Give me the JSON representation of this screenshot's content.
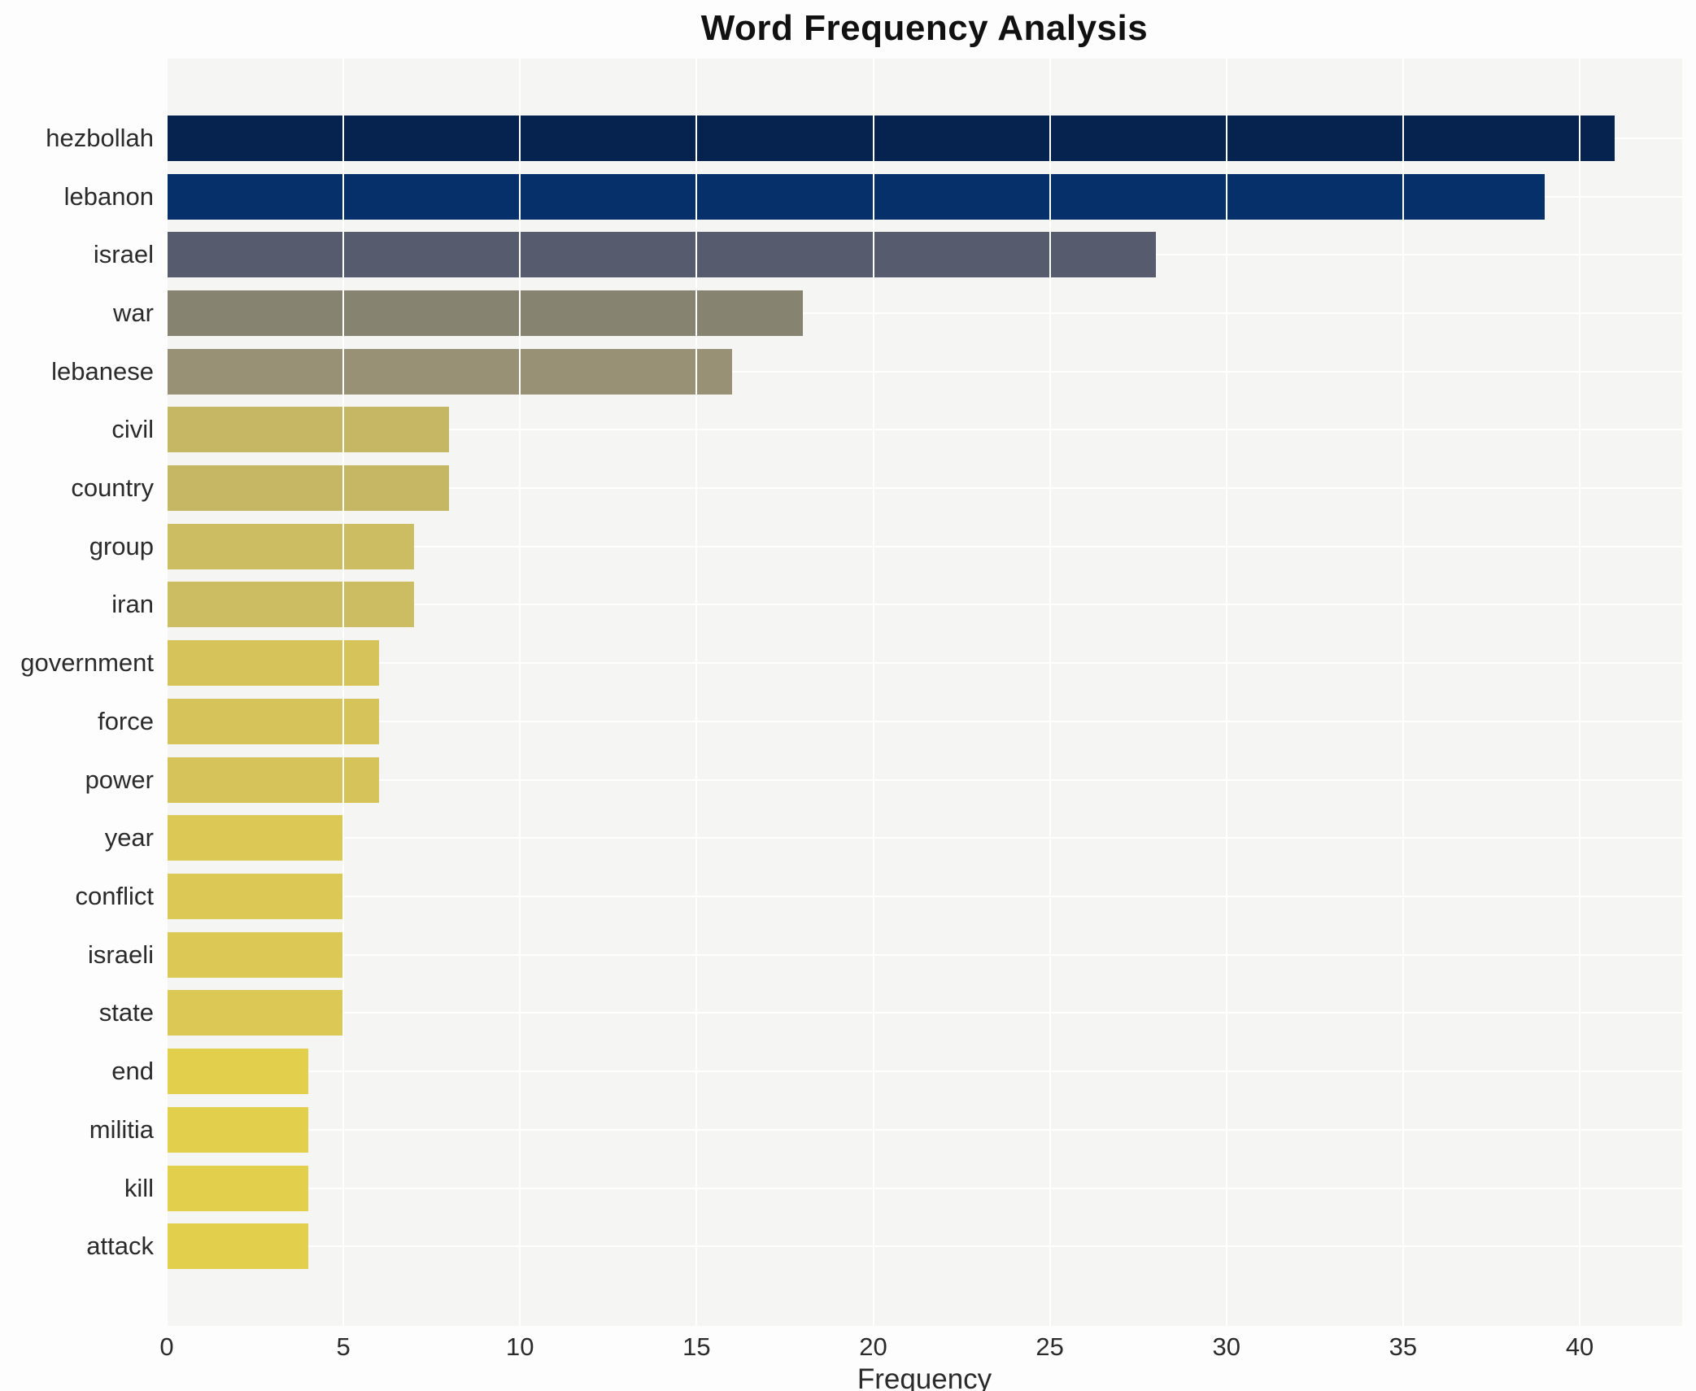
{
  "chart_data": {
    "type": "bar",
    "orientation": "horizontal",
    "title": "Word Frequency Analysis",
    "xlabel": "Frequency",
    "ylabel": "",
    "categories": [
      "hezbollah",
      "lebanon",
      "israel",
      "war",
      "lebanese",
      "civil",
      "country",
      "group",
      "iran",
      "government",
      "force",
      "power",
      "year",
      "conflict",
      "israeli",
      "state",
      "end",
      "militia",
      "kill",
      "attack"
    ],
    "values": [
      41,
      39,
      28,
      18,
      16,
      8,
      8,
      7,
      7,
      6,
      6,
      6,
      5,
      5,
      5,
      5,
      4,
      4,
      4,
      4
    ],
    "bar_colors": [
      "#06224e",
      "#053069",
      "#565c6e",
      "#868471",
      "#989175",
      "#c6b765",
      "#c6b765",
      "#cdbd62",
      "#cdbd62",
      "#d6c45b",
      "#d6c45b",
      "#d6c45b",
      "#dcc854",
      "#dcc854",
      "#dcc854",
      "#dcc854",
      "#e2d04c",
      "#e2d04c",
      "#e2d04c",
      "#e2d04c"
    ],
    "xticks": [
      0,
      5,
      10,
      15,
      20,
      25,
      30,
      35,
      40
    ],
    "xlim": [
      0,
      42.9
    ],
    "grid": true,
    "legend_position": "none",
    "plot_background_color": "#f5f5f4",
    "gridline_color": "#ffffff",
    "title_color": "#111111",
    "axis_text_color": "#2b2b2b"
  }
}
